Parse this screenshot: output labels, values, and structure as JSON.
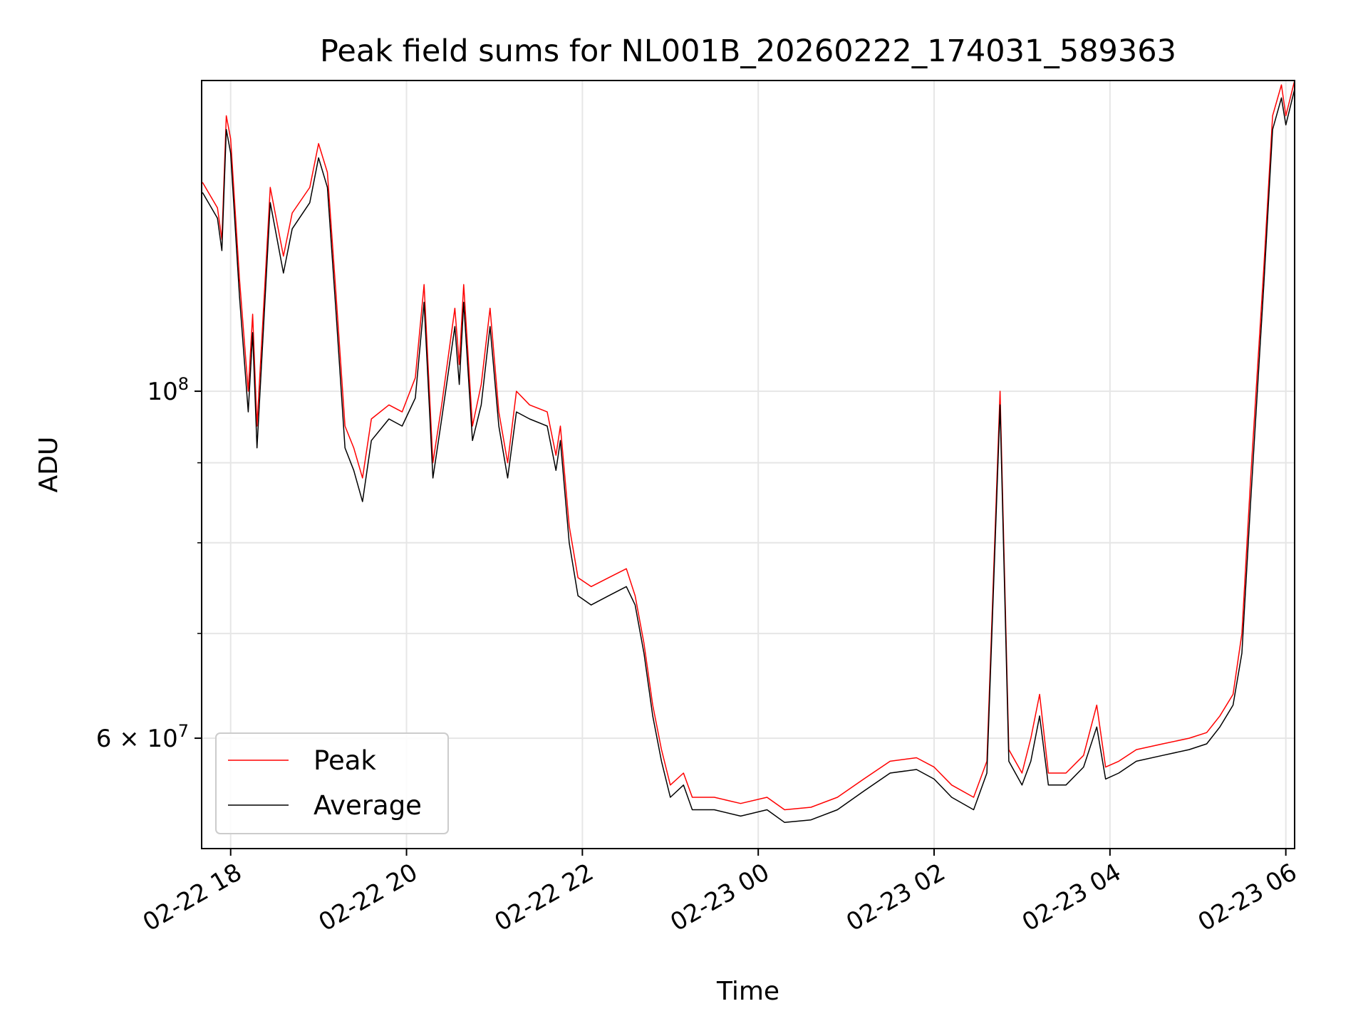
{
  "chart_data": {
    "type": "line",
    "title": "Peak field sums for NL001B_20260222_174031_589363",
    "xlabel": "Time",
    "ylabel": "ADU",
    "y_scale": "log",
    "grid": true,
    "legend_position": "lower-left",
    "x_tick_labels": [
      "02-22 18",
      "02-22 20",
      "02-22 22",
      "02-23 00",
      "02-23 02",
      "02-23 04",
      "02-23 06"
    ],
    "x_tick_hours": [
      18,
      20,
      22,
      24,
      26,
      28,
      30
    ],
    "xlim_hours": [
      17.67,
      30.1
    ],
    "ylim": [
      51000000,
      158000000
    ],
    "y_major_ticks": [
      {
        "value": 100000000,
        "base": "10",
        "exp": "8",
        "mantissa": ""
      },
      {
        "value": 60000000,
        "base": "10",
        "exp": "7",
        "mantissa": "6"
      }
    ],
    "y_minor_ticks": [
      70000000,
      80000000,
      90000000
    ],
    "series": [
      {
        "name": "Peak",
        "color": "#ff0000",
        "points": [
          [
            17.68,
            136000000
          ],
          [
            17.85,
            131000000
          ],
          [
            17.9,
            125000000
          ],
          [
            17.95,
            150000000
          ],
          [
            18.0,
            145000000
          ],
          [
            18.1,
            118000000
          ],
          [
            18.2,
            100000000
          ],
          [
            18.25,
            112000000
          ],
          [
            18.3,
            95000000
          ],
          [
            18.4,
            120000000
          ],
          [
            18.45,
            135000000
          ],
          [
            18.6,
            122000000
          ],
          [
            18.7,
            130000000
          ],
          [
            18.9,
            135000000
          ],
          [
            19.0,
            144000000
          ],
          [
            19.1,
            138000000
          ],
          [
            19.2,
            115000000
          ],
          [
            19.3,
            95000000
          ],
          [
            19.4,
            92000000
          ],
          [
            19.5,
            88000000
          ],
          [
            19.6,
            96000000
          ],
          [
            19.8,
            98000000
          ],
          [
            19.95,
            97000000
          ],
          [
            20.1,
            102000000
          ],
          [
            20.2,
            117000000
          ],
          [
            20.3,
            90000000
          ],
          [
            20.4,
            98000000
          ],
          [
            20.55,
            113000000
          ],
          [
            20.6,
            104000000
          ],
          [
            20.65,
            117000000
          ],
          [
            20.75,
            95000000
          ],
          [
            20.85,
            101000000
          ],
          [
            20.95,
            113000000
          ],
          [
            21.05,
            97000000
          ],
          [
            21.15,
            90000000
          ],
          [
            21.25,
            100000000
          ],
          [
            21.4,
            98000000
          ],
          [
            21.6,
            97000000
          ],
          [
            21.7,
            91000000
          ],
          [
            21.75,
            95000000
          ],
          [
            21.85,
            82000000
          ],
          [
            21.95,
            76000000
          ],
          [
            22.1,
            75000000
          ],
          [
            22.3,
            76000000
          ],
          [
            22.5,
            77000000
          ],
          [
            22.6,
            74000000
          ],
          [
            22.7,
            69000000
          ],
          [
            22.8,
            63000000
          ],
          [
            22.9,
            59000000
          ],
          [
            23.0,
            56000000
          ],
          [
            23.15,
            57000000
          ],
          [
            23.25,
            55000000
          ],
          [
            23.5,
            55000000
          ],
          [
            23.8,
            54500000
          ],
          [
            24.1,
            55000000
          ],
          [
            24.3,
            54000000
          ],
          [
            24.6,
            54200000
          ],
          [
            24.9,
            55000000
          ],
          [
            25.2,
            56500000
          ],
          [
            25.5,
            58000000
          ],
          [
            25.8,
            58300000
          ],
          [
            26.0,
            57500000
          ],
          [
            26.2,
            56000000
          ],
          [
            26.45,
            55000000
          ],
          [
            26.6,
            58000000
          ],
          [
            26.75,
            100000000
          ],
          [
            26.85,
            59000000
          ],
          [
            27.0,
            57000000
          ],
          [
            27.1,
            60000000
          ],
          [
            27.2,
            64000000
          ],
          [
            27.3,
            57000000
          ],
          [
            27.5,
            57000000
          ],
          [
            27.7,
            58500000
          ],
          [
            27.85,
            63000000
          ],
          [
            27.95,
            57500000
          ],
          [
            28.1,
            58000000
          ],
          [
            28.3,
            59000000
          ],
          [
            28.6,
            59500000
          ],
          [
            28.9,
            60000000
          ],
          [
            29.1,
            60500000
          ],
          [
            29.25,
            62000000
          ],
          [
            29.4,
            64000000
          ],
          [
            29.5,
            70000000
          ],
          [
            29.6,
            88000000
          ],
          [
            29.75,
            120000000
          ],
          [
            29.85,
            150000000
          ],
          [
            29.95,
            157000000
          ],
          [
            30.0,
            150000000
          ],
          [
            30.1,
            158000000
          ]
        ]
      },
      {
        "name": "Average",
        "color": "#000000",
        "points": [
          [
            17.68,
            134000000
          ],
          [
            17.85,
            129000000
          ],
          [
            17.9,
            123000000
          ],
          [
            17.95,
            147000000
          ],
          [
            18.0,
            142000000
          ],
          [
            18.1,
            115000000
          ],
          [
            18.2,
            97000000
          ],
          [
            18.25,
            109000000
          ],
          [
            18.3,
            92000000
          ],
          [
            18.4,
            117000000
          ],
          [
            18.45,
            132000000
          ],
          [
            18.6,
            119000000
          ],
          [
            18.7,
            127000000
          ],
          [
            18.9,
            132000000
          ],
          [
            19.0,
            141000000
          ],
          [
            19.1,
            135000000
          ],
          [
            19.2,
            112000000
          ],
          [
            19.3,
            92000000
          ],
          [
            19.4,
            89000000
          ],
          [
            19.5,
            85000000
          ],
          [
            19.6,
            93000000
          ],
          [
            19.8,
            96000000
          ],
          [
            19.95,
            95000000
          ],
          [
            20.1,
            99000000
          ],
          [
            20.2,
            114000000
          ],
          [
            20.3,
            88000000
          ],
          [
            20.4,
            96000000
          ],
          [
            20.55,
            110000000
          ],
          [
            20.6,
            101000000
          ],
          [
            20.65,
            114000000
          ],
          [
            20.75,
            93000000
          ],
          [
            20.85,
            98000000
          ],
          [
            20.95,
            110000000
          ],
          [
            21.05,
            95000000
          ],
          [
            21.15,
            88000000
          ],
          [
            21.25,
            97000000
          ],
          [
            21.4,
            96000000
          ],
          [
            21.6,
            95000000
          ],
          [
            21.7,
            89000000
          ],
          [
            21.75,
            93000000
          ],
          [
            21.85,
            80000000
          ],
          [
            21.95,
            74000000
          ],
          [
            22.1,
            73000000
          ],
          [
            22.3,
            74000000
          ],
          [
            22.5,
            75000000
          ],
          [
            22.6,
            73000000
          ],
          [
            22.7,
            68000000
          ],
          [
            22.8,
            62000000
          ],
          [
            22.9,
            58000000
          ],
          [
            23.0,
            55000000
          ],
          [
            23.15,
            56000000
          ],
          [
            23.25,
            54000000
          ],
          [
            23.5,
            54000000
          ],
          [
            23.8,
            53500000
          ],
          [
            24.1,
            54000000
          ],
          [
            24.3,
            53000000
          ],
          [
            24.6,
            53200000
          ],
          [
            24.9,
            54000000
          ],
          [
            25.2,
            55500000
          ],
          [
            25.5,
            57000000
          ],
          [
            25.8,
            57300000
          ],
          [
            26.0,
            56500000
          ],
          [
            26.2,
            55000000
          ],
          [
            26.45,
            54000000
          ],
          [
            26.6,
            57000000
          ],
          [
            26.75,
            98000000
          ],
          [
            26.85,
            58000000
          ],
          [
            27.0,
            56000000
          ],
          [
            27.1,
            58000000
          ],
          [
            27.2,
            62000000
          ],
          [
            27.3,
            56000000
          ],
          [
            27.5,
            56000000
          ],
          [
            27.7,
            57500000
          ],
          [
            27.85,
            61000000
          ],
          [
            27.95,
            56500000
          ],
          [
            28.1,
            57000000
          ],
          [
            28.3,
            58000000
          ],
          [
            28.6,
            58500000
          ],
          [
            28.9,
            59000000
          ],
          [
            29.1,
            59500000
          ],
          [
            29.25,
            61000000
          ],
          [
            29.4,
            63000000
          ],
          [
            29.5,
            68000000
          ],
          [
            29.6,
            85000000
          ],
          [
            29.75,
            117000000
          ],
          [
            29.85,
            147000000
          ],
          [
            29.95,
            154000000
          ],
          [
            30.0,
            148000000
          ],
          [
            30.1,
            156000000
          ]
        ]
      }
    ]
  }
}
